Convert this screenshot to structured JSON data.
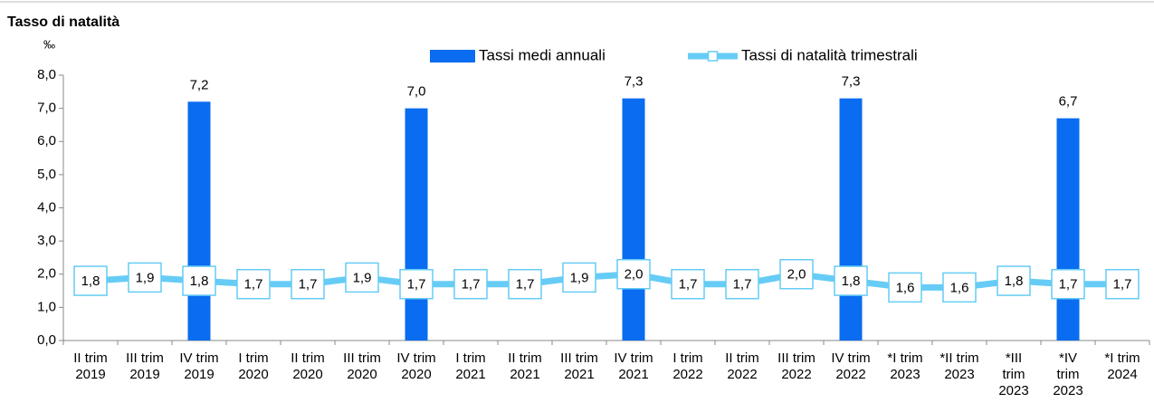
{
  "chart_data": {
    "type": "bar-line",
    "title": "Tasso di natalità",
    "y_label": "‰",
    "categories": [
      "II trim 2019",
      "III trim 2019",
      "IV trim 2019",
      "I trim 2020",
      "II trim 2020",
      "III trim 2020",
      "IV trim 2020",
      "I trim 2021",
      "II trim 2021",
      "III trim 2021",
      "IV trim 2021",
      "I trim 2022",
      "II trim 2022",
      "III trim 2022",
      "IV trim 2022",
      "*I trim 2023",
      "*II trim 2023",
      "*III trim 2023",
      "*IV trim 2023",
      "*I trim 2024"
    ],
    "series": [
      {
        "name": "Tassi medi annuali",
        "type": "bar",
        "color": "#0a6cf0",
        "values": [
          null,
          null,
          7.2,
          null,
          null,
          null,
          7.0,
          null,
          null,
          null,
          7.3,
          null,
          null,
          null,
          7.3,
          null,
          null,
          null,
          6.7,
          null
        ],
        "value_labels": [
          null,
          null,
          "7,2",
          null,
          null,
          null,
          "7,0",
          null,
          null,
          null,
          "7,3",
          null,
          null,
          null,
          "7,3",
          null,
          null,
          null,
          "6,7",
          null
        ]
      },
      {
        "name": "Tassi di natalità trimestrali",
        "type": "line",
        "color": "#66ccf5",
        "values": [
          1.8,
          1.9,
          1.8,
          1.7,
          1.7,
          1.9,
          1.7,
          1.7,
          1.7,
          1.9,
          2.0,
          1.7,
          1.7,
          2.0,
          1.8,
          1.6,
          1.6,
          1.8,
          1.7,
          1.7
        ],
        "value_labels": [
          "1,8",
          "1,9",
          "1,8",
          "1,7",
          "1,7",
          "1,9",
          "1,7",
          "1,7",
          "1,7",
          "1,9",
          "2,0",
          "1,7",
          "1,7",
          "2,0",
          "1,8",
          "1,6",
          "1,6",
          "1,8",
          "1,7",
          "1,7"
        ]
      }
    ],
    "ylim": [
      0,
      8
    ],
    "yticks": [
      {
        "value": 0,
        "label": "0,0"
      },
      {
        "value": 1,
        "label": "1,0"
      },
      {
        "value": 2,
        "label": "2,0"
      },
      {
        "value": 3,
        "label": "3,0"
      },
      {
        "value": 4,
        "label": "4,0"
      },
      {
        "value": 5,
        "label": "5,0"
      },
      {
        "value": 6,
        "label": "6,0"
      },
      {
        "value": 7,
        "label": "7,0"
      },
      {
        "value": 8,
        "label": "8,0"
      }
    ],
    "grid": false
  }
}
